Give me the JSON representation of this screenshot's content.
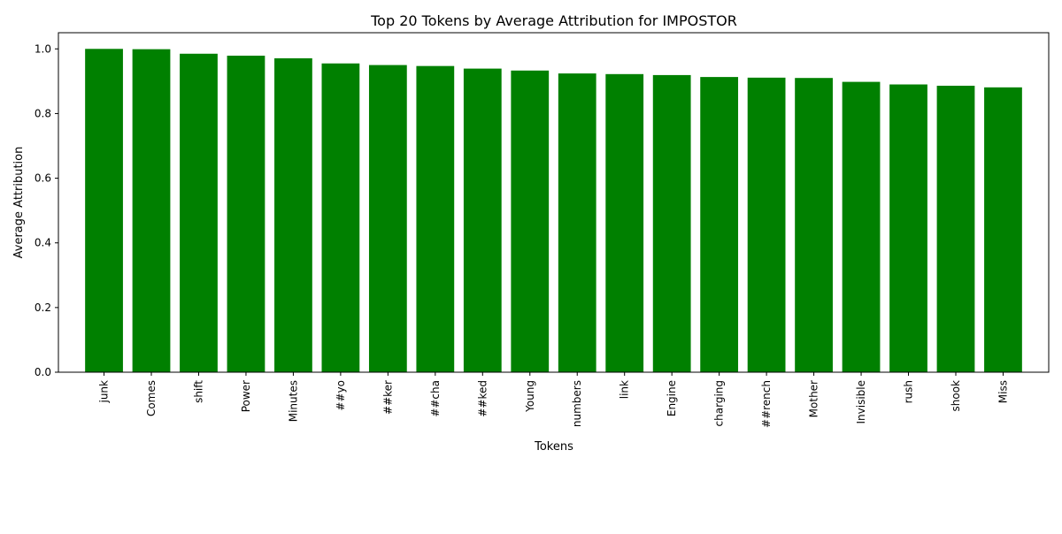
{
  "chart_data": {
    "type": "bar",
    "title": "Top 20 Tokens by Average Attribution for IMPOSTOR",
    "xlabel": "Tokens",
    "ylabel": "Average Attribution",
    "categories": [
      "junk",
      "Comes",
      "shift",
      "Power",
      "Minutes",
      "##yo",
      "##ker",
      "##cha",
      "##ked",
      "Young",
      "numbers",
      "link",
      "Engine",
      "charging",
      "##rench",
      "Mother",
      "Invisible",
      "rush",
      "shook",
      "Miss"
    ],
    "values": [
      1.0,
      0.999,
      0.985,
      0.979,
      0.971,
      0.955,
      0.95,
      0.947,
      0.939,
      0.933,
      0.924,
      0.922,
      0.919,
      0.913,
      0.911,
      0.91,
      0.898,
      0.89,
      0.886,
      0.881
    ],
    "ylim": [
      0,
      1.05
    ],
    "yticks": [
      0.0,
      0.2,
      0.4,
      0.6,
      0.8,
      1.0
    ],
    "ytick_labels": [
      "0.0",
      "0.2",
      "0.4",
      "0.6",
      "0.8",
      "1.0"
    ],
    "bar_color": "#008000",
    "grid": false,
    "legend": false
  }
}
